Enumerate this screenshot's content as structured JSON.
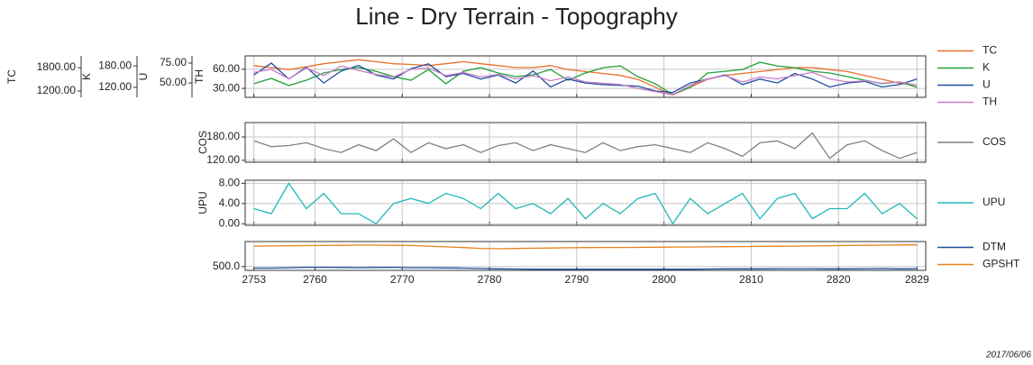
{
  "chart_data": {
    "type": "line",
    "title": "Line - Dry Terrain - Topography",
    "date": "2017/06/06",
    "x": [
      2753,
      2755,
      2757,
      2759,
      2761,
      2763,
      2765,
      2767,
      2769,
      2771,
      2773,
      2775,
      2777,
      2779,
      2781,
      2783,
      2785,
      2787,
      2789,
      2791,
      2793,
      2795,
      2797,
      2799,
      2801,
      2803,
      2805,
      2807,
      2809,
      2811,
      2813,
      2815,
      2817,
      2819,
      2821,
      2823,
      2825,
      2827,
      2829
    ],
    "xlim": [
      2752,
      2830
    ],
    "xticks": [
      2753,
      2760,
      2770,
      2780,
      2790,
      2800,
      2810,
      2820,
      2829
    ],
    "grid": true,
    "panels": [
      {
        "axes": [
          {
            "ylim": [
              1040,
              2100
            ],
            "yticks": [
              {
                "value": 1200,
                "label": "1200.00"
              },
              {
                "value": 1800,
                "label": "1800.00"
              }
            ]
          },
          {
            "ylim": [
              92,
              208
            ],
            "yticks": [
              {
                "value": 120,
                "label": "120.00"
              },
              {
                "value": 180,
                "label": "180.00"
              }
            ]
          },
          {
            "ylim": [
              32,
              84
            ],
            "yticks": [
              {
                "value": 50,
                "label": "50.00"
              },
              {
                "value": 75,
                "label": "75.00"
              }
            ]
          },
          {
            "ylim": [
              16,
              81
            ],
            "yticks": [
              {
                "value": 30,
                "label": "30.00"
              },
              {
                "value": 60,
                "label": "60.00"
              }
            ]
          }
        ],
        "series": [
          {
            "name": "TC",
            "color": "#e8702a",
            "axis": 0,
            "values": [
              1850,
              1800,
              1750,
              1820,
              1900,
              1950,
              2000,
              1950,
              1900,
              1880,
              1850,
              1900,
              1950,
              1900,
              1850,
              1800,
              1800,
              1850,
              1750,
              1700,
              1650,
              1600,
              1500,
              1300,
              1100,
              1300,
              1500,
              1600,
              1650,
              1700,
              1750,
              1800,
              1800,
              1750,
              1700,
              1600,
              1500,
              1400,
              1350
            ]
          },
          {
            "name": "K",
            "color": "#22a03a",
            "axis": 1,
            "values": [
              130,
              145,
              125,
              140,
              160,
              170,
              175,
              165,
              150,
              140,
              170,
              130,
              165,
              175,
              160,
              150,
              155,
              170,
              140,
              160,
              175,
              180,
              150,
              130,
              100,
              120,
              160,
              165,
              170,
              190,
              180,
              175,
              165,
              160,
              150,
              140,
              130,
              135,
              120
            ]
          },
          {
            "name": "U",
            "color": "#1f4fa0",
            "axis": 2,
            "values": [
              60,
              75,
              55,
              70,
              50,
              65,
              72,
              60,
              55,
              68,
              74,
              58,
              62,
              55,
              60,
              50,
              65,
              45,
              55,
              50,
              48,
              47,
              46,
              40,
              38,
              50,
              55,
              60,
              48,
              55,
              50,
              62,
              55,
              45,
              50,
              52,
              45,
              48,
              55
            ]
          },
          {
            "name": "TH",
            "color": "#c77cc8",
            "axis": 3,
            "values": [
              55,
              60,
              45,
              62,
              50,
              65,
              58,
              52,
              48,
              60,
              62,
              50,
              55,
              48,
              52,
              45,
              50,
              42,
              48,
              40,
              38,
              36,
              30,
              25,
              20,
              35,
              45,
              50,
              40,
              48,
              45,
              50,
              55,
              45,
              40,
              42,
              38,
              40,
              35
            ]
          }
        ]
      },
      {
        "axes": [
          {
            "ylim": [
              115,
              217
            ],
            "yticks": [
              {
                "value": 120,
                "label": "120.00"
              },
              {
                "value": 180,
                "label": "180.00"
              }
            ]
          }
        ],
        "series": [
          {
            "name": "COS",
            "color": "#808080",
            "axis": 0,
            "values": [
              170,
              155,
              158,
              165,
              150,
              140,
              160,
              145,
              175,
              140,
              165,
              150,
              160,
              140,
              158,
              165,
              145,
              160,
              150,
              140,
              165,
              145,
              155,
              160,
              150,
              140,
              165,
              150,
              130,
              165,
              170,
              150,
              190,
              125,
              160,
              170,
              145,
              125,
              140
            ]
          }
        ]
      },
      {
        "axes": [
          {
            "ylim": [
              -0.3,
              8.6
            ],
            "yticks": [
              {
                "value": 0,
                "label": "0.00"
              },
              {
                "value": 4,
                "label": "4.00"
              },
              {
                "value": 8,
                "label": "8.00"
              }
            ]
          }
        ],
        "series": [
          {
            "name": "UPU",
            "color": "#20b8b8",
            "axis": 0,
            "values": [
              3,
              2,
              8,
              3,
              6,
              2,
              2,
              0,
              4,
              5,
              4,
              6,
              5,
              3,
              6,
              3,
              4,
              2,
              5,
              1,
              4,
              2,
              5,
              6,
              0,
              5,
              2,
              4,
              6,
              1,
              5,
              6,
              1,
              3,
              3,
              6,
              2,
              4,
              1
            ]
          }
        ]
      },
      {
        "axes": [
          {
            "ylim": [
              450,
              830
            ],
            "yticks": [
              {
                "value": 500,
                "label": "500.0"
              }
            ]
          }
        ],
        "series": [
          {
            "name": "DTM",
            "color": "#1f4fa0",
            "axis": 0,
            "values": [
              480,
              480,
              485,
              490,
              490,
              488,
              486,
              488,
              490,
              485,
              484,
              482,
              480,
              475,
              470,
              468,
              466,
              466,
              466,
              466,
              466,
              466,
              466,
              466,
              466,
              466,
              468,
              470,
              470,
              470,
              472,
              472,
              472,
              470,
              470,
              472,
              475,
              470,
              472
            ]
          },
          {
            "name": "GPSHT",
            "color": "#e8801a",
            "axis": 0,
            "values": [
              770,
              772,
              775,
              776,
              778,
              780,
              782,
              782,
              780,
              778,
              770,
              760,
              750,
              740,
              735,
              738,
              742,
              745,
              748,
              750,
              752,
              752,
              753,
              755,
              757,
              758,
              760,
              762,
              764,
              766,
              768,
              770,
              772,
              775,
              778,
              780,
              782,
              785,
              786
            ]
          }
        ]
      }
    ]
  }
}
